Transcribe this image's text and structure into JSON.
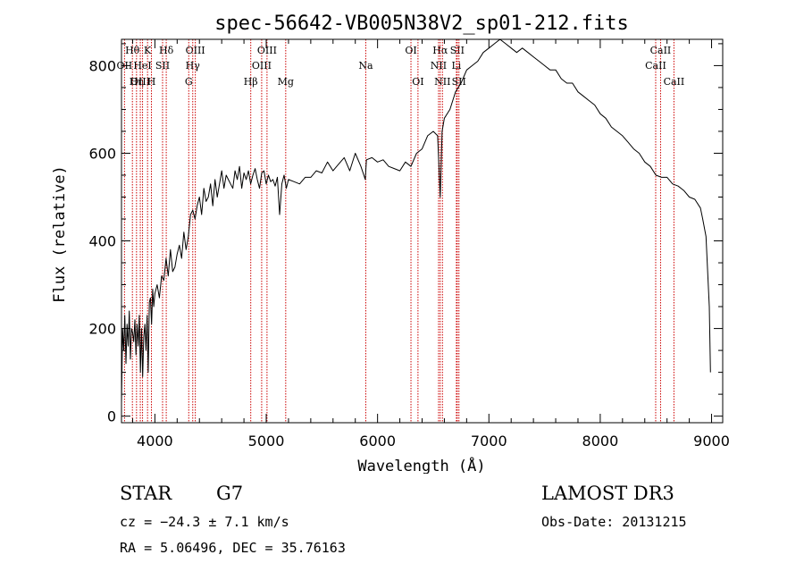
{
  "chart_data": {
    "type": "line",
    "title": "spec-56642-VB005N38V2_sp01-212.fits",
    "xlabel": "Wavelength (Å)",
    "ylabel": "Flux (relative)",
    "xlim": [
      3700,
      9100
    ],
    "ylim": [
      -15,
      860
    ],
    "xticks": [
      4000,
      5000,
      6000,
      7000,
      8000,
      9000
    ],
    "yticks": [
      0,
      200,
      400,
      600,
      800
    ],
    "series": [
      {
        "name": "flux",
        "x": [
          3700,
          3710,
          3720,
          3730,
          3740,
          3750,
          3760,
          3770,
          3780,
          3790,
          3800,
          3810,
          3820,
          3830,
          3840,
          3850,
          3860,
          3870,
          3880,
          3890,
          3900,
          3910,
          3920,
          3930,
          3940,
          3950,
          3960,
          3970,
          3980,
          3990,
          4000,
          4020,
          4040,
          4060,
          4080,
          4100,
          4120,
          4140,
          4160,
          4180,
          4200,
          4220,
          4240,
          4260,
          4280,
          4300,
          4320,
          4340,
          4360,
          4380,
          4400,
          4420,
          4440,
          4460,
          4480,
          4500,
          4520,
          4540,
          4560,
          4580,
          4600,
          4620,
          4640,
          4660,
          4680,
          4700,
          4720,
          4740,
          4760,
          4780,
          4800,
          4820,
          4840,
          4860,
          4880,
          4900,
          4920,
          4940,
          4960,
          4980,
          5000,
          5020,
          5040,
          5060,
          5080,
          5100,
          5120,
          5140,
          5160,
          5180,
          5200,
          5250,
          5300,
          5350,
          5400,
          5450,
          5500,
          5550,
          5600,
          5650,
          5700,
          5750,
          5800,
          5850,
          5890,
          5900,
          5950,
          6000,
          6050,
          6100,
          6150,
          6200,
          6250,
          6300,
          6350,
          6400,
          6450,
          6500,
          6540,
          6563,
          6580,
          6600,
          6650,
          6700,
          6750,
          6800,
          6850,
          6900,
          6950,
          7000,
          7050,
          7100,
          7150,
          7200,
          7250,
          7300,
          7350,
          7400,
          7450,
          7500,
          7550,
          7600,
          7650,
          7700,
          7750,
          7800,
          7850,
          7900,
          7950,
          8000,
          8050,
          8100,
          8150,
          8200,
          8250,
          8300,
          8350,
          8400,
          8450,
          8500,
          8550,
          8600,
          8650,
          8700,
          8750,
          8800,
          8850,
          8900,
          8920,
          8950,
          8980,
          8990
        ],
        "y": [
          30,
          200,
          150,
          230,
          120,
          210,
          160,
          240,
          130,
          200,
          190,
          170,
          220,
          140,
          210,
          160,
          230,
          100,
          200,
          90,
          180,
          210,
          150,
          230,
          100,
          260,
          270,
          210,
          290,
          250,
          280,
          300,
          270,
          320,
          310,
          360,
          320,
          380,
          330,
          340,
          370,
          390,
          360,
          420,
          380,
          410,
          460,
          470,
          450,
          480,
          500,
          460,
          520,
          490,
          500,
          530,
          480,
          540,
          500,
          530,
          560,
          520,
          550,
          540,
          530,
          520,
          560,
          540,
          570,
          520,
          555,
          540,
          560,
          530,
          550,
          565,
          540,
          520,
          555,
          560,
          530,
          550,
          535,
          540,
          525,
          545,
          460,
          530,
          550,
          520,
          540,
          535,
          530,
          545,
          545,
          560,
          555,
          580,
          560,
          575,
          590,
          560,
          600,
          570,
          540,
          585,
          590,
          580,
          585,
          570,
          565,
          560,
          580,
          570,
          600,
          610,
          640,
          650,
          640,
          500,
          650,
          680,
          700,
          740,
          760,
          790,
          800,
          810,
          830,
          840,
          850,
          860,
          850,
          840,
          830,
          840,
          830,
          820,
          810,
          800,
          790,
          790,
          770,
          760,
          760,
          740,
          730,
          720,
          710,
          690,
          680,
          660,
          650,
          640,
          625,
          610,
          600,
          580,
          570,
          550,
          545,
          545,
          530,
          525,
          515,
          500,
          495,
          475,
          450,
          410,
          250,
          100
        ]
      }
    ],
    "line_markers": [
      {
        "label": "Hθ",
        "x": 3798,
        "row": 1
      },
      {
        "label": "OII",
        "x": 3727,
        "row": 2
      },
      {
        "label": "OIII",
        "x": 3869,
        "row": 3
      },
      {
        "label": "Hη",
        "x": 3835,
        "row": 3
      },
      {
        "label": "HeI",
        "x": 3889,
        "row": 2
      },
      {
        "label": "K",
        "x": 3934,
        "row": 1
      },
      {
        "label": "H",
        "x": 3969,
        "row": 3
      },
      {
        "label": "SII",
        "x": 4069,
        "row": 2
      },
      {
        "label": "Hδ",
        "x": 4102,
        "row": 1
      },
      {
        "label": "G",
        "x": 4304,
        "row": 3
      },
      {
        "label": "OIII",
        "x": 4363,
        "row": 1
      },
      {
        "label": "Hγ",
        "x": 4340,
        "row": 2
      },
      {
        "label": "Hβ",
        "x": 4861,
        "row": 3
      },
      {
        "label": "OIII",
        "x": 5007,
        "row": 1
      },
      {
        "label": "OIII",
        "x": 4959,
        "row": 2
      },
      {
        "label": "Mg",
        "x": 5175,
        "row": 3
      },
      {
        "label": "Na",
        "x": 5894,
        "row": 2
      },
      {
        "label": "OI",
        "x": 6300,
        "row": 1
      },
      {
        "label": "OI",
        "x": 6363,
        "row": 3
      },
      {
        "label": "Hα",
        "x": 6563,
        "row": 1
      },
      {
        "label": "NII",
        "x": 6548,
        "row": 2
      },
      {
        "label": "NII",
        "x": 6583,
        "row": 3
      },
      {
        "label": "SII",
        "x": 6716,
        "row": 1
      },
      {
        "label": "Li",
        "x": 6708,
        "row": 2
      },
      {
        "label": "SII",
        "x": 6731,
        "row": 3
      },
      {
        "label": "CaII",
        "x": 8542,
        "row": 1
      },
      {
        "label": "CaII",
        "x": 8498,
        "row": 2
      },
      {
        "label": "CaII",
        "x": 8662,
        "row": 3
      }
    ]
  },
  "info": {
    "object_class": "STAR",
    "subclass": "G7",
    "survey": "LAMOST DR3",
    "cz_line": "cz = −24.3 ± 7.1 km/s",
    "obs_date_line": "Obs-Date: 20131215",
    "coords_line": "RA =   5.06496, DEC =  35.76163"
  },
  "colors": {
    "marker": "#cc0000",
    "ink": "#000000"
  }
}
